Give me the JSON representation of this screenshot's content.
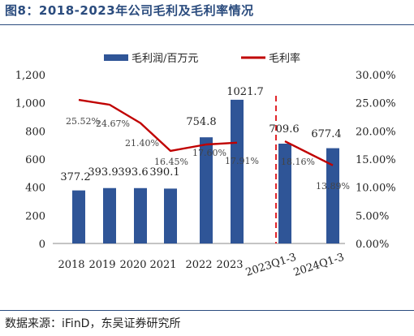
{
  "figure_title": "图8：2018-2023年公司毛利及毛利率情况",
  "source_text": "数据来源：iFinD，东吴证券研究所",
  "chart_data": {
    "type": "bar+line",
    "categories": [
      "2018",
      "2019",
      "2020",
      "2021",
      "2022",
      "2023",
      "2023Q1-3",
      "2024Q1-3"
    ],
    "series": [
      {
        "name": "毛利润/百万元",
        "type": "bar",
        "axis": "left",
        "color": "#2f5597",
        "values": [
          377.2,
          393.9,
          393.6,
          390.1,
          754.8,
          1021.7,
          709.6,
          677.4
        ],
        "labels": [
          "377.2",
          "393.9",
          "393.6",
          "390.1",
          "754.8",
          "1021.7",
          "709.6",
          "677.4"
        ]
      },
      {
        "name": "毛利率",
        "type": "line",
        "axis": "right",
        "color": "#c00000",
        "values": [
          25.52,
          24.67,
          21.4,
          16.45,
          17.6,
          17.91,
          18.16,
          13.89
        ],
        "labels": [
          "25.52%",
          "24.67%",
          "21.40%",
          "16.45%",
          "17.60%",
          "17.91%",
          "18.16%",
          "13.89%"
        ]
      }
    ],
    "y_left": {
      "ticks": [
        "0",
        "200",
        "400",
        "600",
        "800",
        "1,000",
        "1,200"
      ],
      "ylim": [
        0,
        1200
      ]
    },
    "y_right": {
      "ticks": [
        "0.00%",
        "5.00%",
        "10.00%",
        "15.00%",
        "20.00%",
        "25.00%",
        "30.00%"
      ],
      "ylim": [
        0,
        30
      ]
    },
    "legend_position": "top",
    "grid": false,
    "separator": "dashed red vertical line between 2023 and 2023Q1-3"
  }
}
